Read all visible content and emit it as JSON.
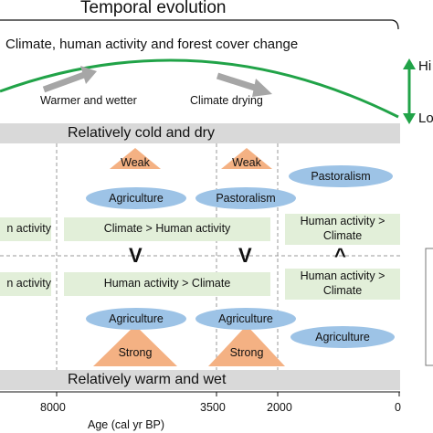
{
  "header": {
    "title": "Temporal evolution",
    "subtitle": "Climate, human activity and forest cover change"
  },
  "trend": {
    "left_label": "Warmer and wetter",
    "right_label": "Climate drying",
    "high_label": "Hi",
    "low_label": "Lo"
  },
  "bands": {
    "top": "Relatively cold and dry",
    "bottom": "Relatively warm and wet"
  },
  "upper": {
    "influence": [
      "Weak",
      "Weak"
    ],
    "activities": [
      "Agriculture",
      "Pastoralism",
      "Pastoralism"
    ],
    "relations": [
      "n activity",
      "Climate > Human activity",
      "Human activity >",
      "Climate"
    ],
    "comparators": [
      "V",
      "V",
      "^"
    ]
  },
  "lower": {
    "relations": [
      "n activity",
      "Human activity > Climate",
      "Human activity >",
      "Climate"
    ],
    "activities": [
      "Agriculture",
      "Agriculture",
      "Agriculture"
    ],
    "influence": [
      "Strong",
      "Strong"
    ]
  },
  "axis": {
    "ticks": [
      "8000",
      "3500",
      "2000",
      "0"
    ],
    "label": "Age (cal yr BP)"
  },
  "colors": {
    "curve": "#21a348",
    "arrow": "#21a348",
    "band": "#d9d9d9",
    "box": "#e2efd9",
    "ellipse": "#9dc3e6",
    "triangle": "#f4b183"
  }
}
